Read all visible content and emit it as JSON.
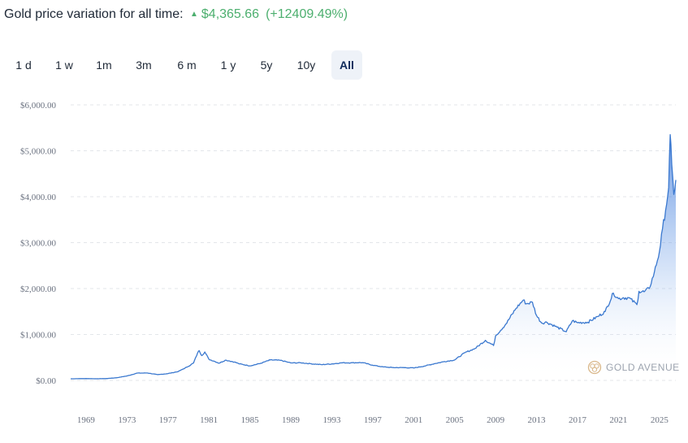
{
  "header": {
    "label": "Gold price variation for all time:",
    "price": "$4,365.66",
    "change": "(+12409.49%)"
  },
  "colors": {
    "accent": "#3a78cf",
    "up": "#4caf6e",
    "active_bg": "#eef2f8"
  },
  "ranges": [
    {
      "label": "1 d",
      "active": false
    },
    {
      "label": "1 w",
      "active": false
    },
    {
      "label": "1m",
      "active": false
    },
    {
      "label": "3m",
      "active": false
    },
    {
      "label": "6 m",
      "active": false
    },
    {
      "label": "1 y",
      "active": false
    },
    {
      "label": "5y",
      "active": false
    },
    {
      "label": "10y",
      "active": false
    },
    {
      "label": "All",
      "active": true
    }
  ],
  "watermark": "GOLD AVENUE",
  "chart_data": {
    "type": "area",
    "title": "",
    "xlabel": "",
    "ylabel": "",
    "ylim": [
      0,
      6000
    ],
    "xlim": [
      1967.5,
      2026.6
    ],
    "grid": true,
    "y_ticks": [
      {
        "value": 0,
        "label": "$0.00"
      },
      {
        "value": 1000,
        "label": "$1,000.00"
      },
      {
        "value": 2000,
        "label": "$2,000.00"
      },
      {
        "value": 3000,
        "label": "$3,000.00"
      },
      {
        "value": 4000,
        "label": "$4,000.00"
      },
      {
        "value": 5000,
        "label": "$5,000.00"
      },
      {
        "value": 6000,
        "label": "$6,000.00"
      }
    ],
    "x_ticks": [
      {
        "value": 1969,
        "label": "1969"
      },
      {
        "value": 1973,
        "label": "1973"
      },
      {
        "value": 1977,
        "label": "1977"
      },
      {
        "value": 1981,
        "label": "1981"
      },
      {
        "value": 1985,
        "label": "1985"
      },
      {
        "value": 1989,
        "label": "1989"
      },
      {
        "value": 1993,
        "label": "1993"
      },
      {
        "value": 1997,
        "label": "1997"
      },
      {
        "value": 2001,
        "label": "2001"
      },
      {
        "value": 2005,
        "label": "2005"
      },
      {
        "value": 2009,
        "label": "2009"
      },
      {
        "value": 2013,
        "label": "2013"
      },
      {
        "value": 2017,
        "label": "2017"
      },
      {
        "value": 2021,
        "label": "2021"
      },
      {
        "value": 2025,
        "label": "2025"
      }
    ],
    "series": [
      {
        "x": [
          1967.5,
          1969,
          1970,
          1971,
          1972,
          1973,
          1974,
          1975,
          1976,
          1977,
          1978,
          1979,
          1979.5,
          1979.9,
          1980.05,
          1980.3,
          1980.6,
          1981,
          1981.5,
          1982,
          1982.6,
          1983,
          1983.5,
          1984,
          1985,
          1986,
          1987,
          1988,
          1989,
          1990,
          1991,
          1992,
          1993,
          1994,
          1995,
          1996,
          1997,
          1998,
          1999,
          2000,
          2001,
          2002,
          2003,
          2004,
          2005,
          2006,
          2007,
          2008,
          2008.8,
          2009,
          2010,
          2011,
          2011.7,
          2012,
          2012.6,
          2013,
          2013.5,
          2014,
          2015,
          2015.9,
          2016.5,
          2017,
          2018,
          2019,
          2019.7,
          2020.5,
          2021,
          2021.5,
          2022,
          2022.8,
          2023,
          2023.5,
          2024,
          2024.5,
          2025,
          2025.3,
          2025.6,
          2025.9,
          2026.05,
          2026.2,
          2026.4,
          2026.6
        ],
        "values": [
          35,
          40,
          36,
          40,
          58,
          97,
          159,
          161,
          125,
          148,
          193,
          306,
          380,
          600,
          650,
          540,
          620,
          460,
          420,
          375,
          440,
          424,
          400,
          360,
          317,
          368,
          446,
          437,
          381,
          383,
          362,
          343,
          359,
          384,
          384,
          388,
          331,
          294,
          279,
          279,
          271,
          310,
          363,
          410,
          445,
          604,
          695,
          872,
          760,
          972,
          1224,
          1571,
          1750,
          1669,
          1700,
          1411,
          1250,
          1266,
          1160,
          1060,
          1300,
          1257,
          1268,
          1393,
          1500,
          1900,
          1780,
          1800,
          1800,
          1650,
          1940,
          1930,
          2000,
          2350,
          2800,
          3300,
          3700,
          4200,
          5350,
          4700,
          4050,
          4365
        ]
      }
    ]
  }
}
